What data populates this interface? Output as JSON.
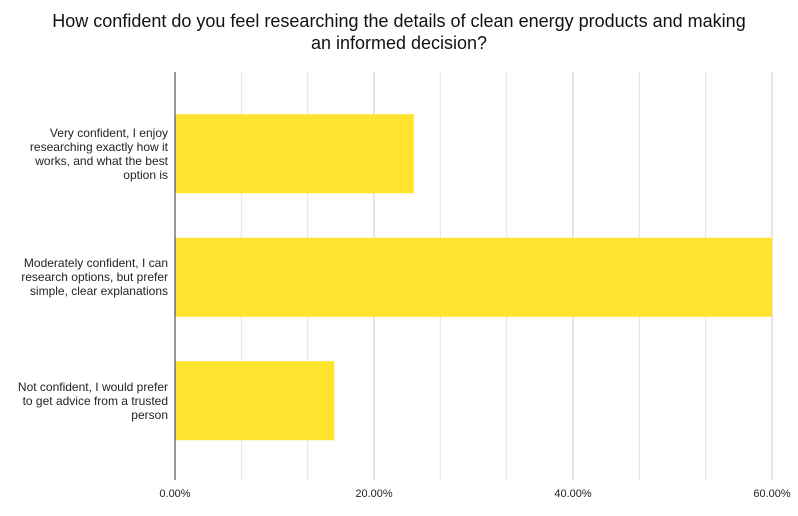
{
  "chart_data": {
    "type": "hbar",
    "title": "How confident do you feel researching the details of clean energy products and making an informed decision?",
    "categories": [
      "Very confident, I enjoy researching exactly how it works, and what the best option is",
      "Moderately confident, I can research options, but prefer simple, clear explanations",
      "Not confident, I would prefer to get advice from a trusted person"
    ],
    "values": [
      24,
      60,
      16
    ],
    "color": "#ffe32e",
    "xlim": [
      0,
      60
    ],
    "xticks": [
      {
        "value": 0,
        "label": "0.00%"
      },
      {
        "value": 20,
        "label": "20.00%"
      },
      {
        "value": 40,
        "label": "40.00%"
      },
      {
        "value": 60,
        "label": "60.00%"
      }
    ],
    "grid": true,
    "minor_grid_divisions": 3
  }
}
